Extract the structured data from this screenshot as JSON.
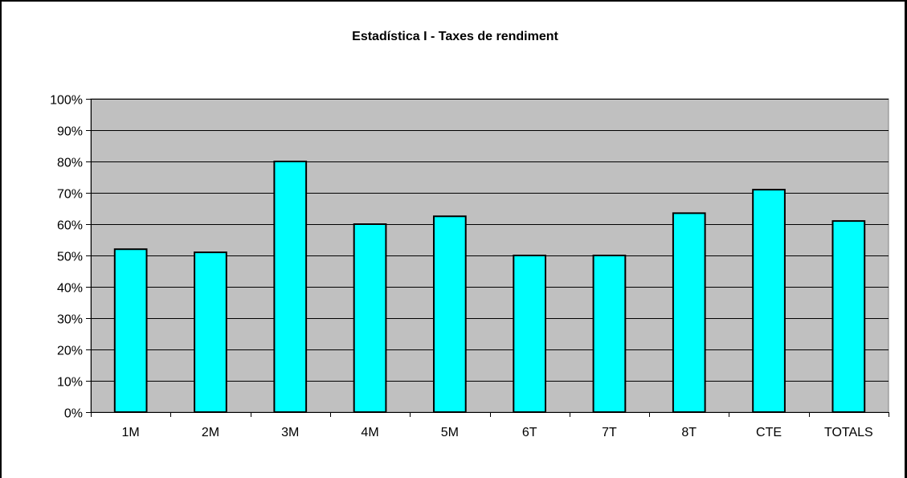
{
  "chart_data": {
    "type": "bar",
    "title": "Estadística I - Taxes de rendiment",
    "xlabel": "",
    "ylabel": "",
    "categories": [
      "1M",
      "2M",
      "3M",
      "4M",
      "5M",
      "6T",
      "7T",
      "8T",
      "CTE",
      "TOTALS"
    ],
    "values": [
      52,
      51,
      80,
      60,
      62.5,
      50,
      50,
      63.5,
      71,
      61
    ],
    "y_unit": "%",
    "ylim": [
      0,
      100
    ],
    "yticks": [
      0,
      10,
      20,
      30,
      40,
      50,
      60,
      70,
      80,
      90,
      100
    ],
    "ytick_labels": [
      "0%",
      "10%",
      "20%",
      "30%",
      "40%",
      "50%",
      "60%",
      "70%",
      "80%",
      "90%",
      "100%"
    ],
    "grid": true,
    "legend": "none",
    "colors": {
      "bar_fill": "#00FFFF",
      "bar_stroke": "#000000",
      "plot_background": "#C0C0C0",
      "gridline": "#000000"
    }
  }
}
